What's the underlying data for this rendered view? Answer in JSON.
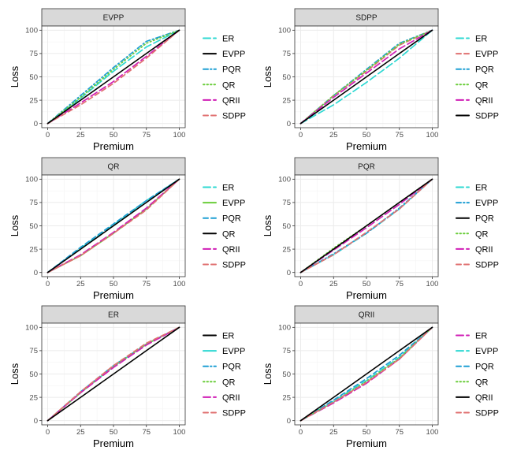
{
  "figure_title": "",
  "colors": {
    "ER": "#2ed8d2",
    "EVPP": "#e07070",
    "PQR": "#1f9fd4",
    "QR": "#6acd3a",
    "QRII": "#d01fb6",
    "SDPP": "#e07070",
    "reference": "#000000",
    "strip_bg": "#d9d9d9",
    "grid": "#ebebeb"
  },
  "chart_data": [
    {
      "type": "line",
      "title": "EVPP",
      "xlabel": "Premium",
      "ylabel": "Loss",
      "xlim": [
        0,
        100
      ],
      "ylim": [
        0,
        100
      ],
      "x_ticks": [
        0,
        25,
        50,
        75,
        100
      ],
      "y_ticks": [
        0,
        25,
        50,
        75,
        100
      ],
      "legend": [
        "ER",
        "EVPP",
        "PQR",
        "QR",
        "QRII",
        "SDPP"
      ],
      "reference_series": "EVPP",
      "series": [
        {
          "name": "ER",
          "color": "#2ed8d2",
          "dash": "9,4",
          "x": [
            0,
            25,
            50,
            75,
            100
          ],
          "y": [
            0,
            27,
            56,
            82,
            100
          ]
        },
        {
          "name": "EVPP",
          "color": "#000000",
          "dash": "",
          "x": [
            0,
            25,
            50,
            75,
            100
          ],
          "y": [
            0,
            25,
            50,
            75,
            100
          ]
        },
        {
          "name": "PQR",
          "color": "#1f9fd4",
          "dash": "6,3,1.5,3",
          "x": [
            0,
            25,
            50,
            75,
            100
          ],
          "y": [
            0,
            30,
            60,
            88,
            100
          ]
        },
        {
          "name": "QR",
          "color": "#6acd3a",
          "dash": "1.5,3",
          "x": [
            0,
            25,
            50,
            75,
            100
          ],
          "y": [
            0,
            28,
            58,
            86,
            100
          ]
        },
        {
          "name": "QRII",
          "color": "#d01fb6",
          "dash": "9,4",
          "x": [
            0,
            25,
            50,
            75,
            100
          ],
          "y": [
            0,
            22,
            45,
            72,
            100
          ]
        },
        {
          "name": "SDPP",
          "color": "#e07070",
          "dash": "6,4",
          "x": [
            0,
            25,
            50,
            75,
            100
          ],
          "y": [
            0,
            20,
            43,
            70,
            100
          ]
        }
      ]
    },
    {
      "type": "line",
      "title": "SDPP",
      "xlabel": "Premium",
      "ylabel": "Loss",
      "xlim": [
        0,
        100
      ],
      "ylim": [
        0,
        100
      ],
      "x_ticks": [
        0,
        25,
        50,
        75,
        100
      ],
      "y_ticks": [
        0,
        25,
        50,
        75,
        100
      ],
      "legend": [
        "ER",
        "EVPP",
        "PQR",
        "QR",
        "QRII",
        "SDPP"
      ],
      "reference_series": "SDPP",
      "series": [
        {
          "name": "ER",
          "color": "#2ed8d2",
          "dash": "9,4",
          "x": [
            0,
            25,
            50,
            75,
            100
          ],
          "y": [
            0,
            20,
            44,
            70,
            100
          ]
        },
        {
          "name": "EVPP",
          "color": "#e07070",
          "dash": "6,4",
          "x": [
            0,
            25,
            50,
            75,
            100
          ],
          "y": [
            0,
            30,
            56,
            84,
            100
          ]
        },
        {
          "name": "PQR",
          "color": "#1f9fd4",
          "dash": "6,3,1.5,3",
          "x": [
            0,
            25,
            50,
            75,
            100
          ],
          "y": [
            0,
            30,
            58,
            86,
            100
          ]
        },
        {
          "name": "QR",
          "color": "#6acd3a",
          "dash": "1.5,3",
          "x": [
            0,
            25,
            50,
            75,
            100
          ],
          "y": [
            0,
            30,
            57,
            85,
            100
          ]
        },
        {
          "name": "QRII",
          "color": "#d01fb6",
          "dash": "9,4",
          "x": [
            0,
            25,
            50,
            75,
            100
          ],
          "y": [
            0,
            28,
            54,
            80,
            100
          ]
        },
        {
          "name": "SDPP",
          "color": "#000000",
          "dash": "",
          "x": [
            0,
            25,
            50,
            75,
            100
          ],
          "y": [
            0,
            25,
            50,
            75,
            100
          ]
        }
      ]
    },
    {
      "type": "line",
      "title": "QR",
      "xlabel": "Premium",
      "ylabel": "Loss",
      "xlim": [
        0,
        100
      ],
      "ylim": [
        0,
        100
      ],
      "x_ticks": [
        0,
        25,
        50,
        75,
        100
      ],
      "y_ticks": [
        0,
        25,
        50,
        75,
        100
      ],
      "legend": [
        "ER",
        "EVPP",
        "PQR",
        "QR",
        "QRII",
        "SDPP"
      ],
      "reference_series": "QR",
      "series": [
        {
          "name": "ER",
          "color": "#2ed8d2",
          "dash": "9,4",
          "x": [
            0,
            25,
            50,
            75,
            100
          ],
          "y": [
            0,
            26,
            51,
            77,
            100
          ]
        },
        {
          "name": "EVPP",
          "color": "#6acd3a",
          "dash": "",
          "x": [
            0,
            25,
            50,
            75,
            100
          ],
          "y": [
            0,
            18,
            42,
            68,
            100
          ]
        },
        {
          "name": "PQR",
          "color": "#1f9fd4",
          "dash": "6,4",
          "x": [
            0,
            25,
            50,
            75,
            100
          ],
          "y": [
            0,
            27,
            52,
            77,
            100
          ]
        },
        {
          "name": "QR",
          "color": "#000000",
          "dash": "",
          "x": [
            0,
            25,
            50,
            75,
            100
          ],
          "y": [
            0,
            25,
            50,
            75,
            100
          ]
        },
        {
          "name": "QRII",
          "color": "#d01fb6",
          "dash": "9,4",
          "x": [
            0,
            25,
            50,
            75,
            100
          ],
          "y": [
            0,
            19,
            43,
            69,
            100
          ]
        },
        {
          "name": "SDPP",
          "color": "#e07070",
          "dash": "6,4",
          "x": [
            0,
            25,
            50,
            75,
            100
          ],
          "y": [
            0,
            18,
            42,
            67,
            100
          ]
        }
      ]
    },
    {
      "type": "line",
      "title": "PQR",
      "xlabel": "Premium",
      "ylabel": "Loss",
      "xlim": [
        0,
        100
      ],
      "ylim": [
        0,
        100
      ],
      "x_ticks": [
        0,
        25,
        50,
        75,
        100
      ],
      "y_ticks": [
        0,
        25,
        50,
        75,
        100
      ],
      "legend": [
        "ER",
        "EVPP",
        "PQR",
        "QR",
        "QRII",
        "SDPP"
      ],
      "reference_series": "PQR",
      "series": [
        {
          "name": "ER",
          "color": "#2ed8d2",
          "dash": "9,4",
          "x": [
            0,
            25,
            50,
            75,
            100
          ],
          "y": [
            0,
            19,
            42,
            68,
            100
          ]
        },
        {
          "name": "EVPP",
          "color": "#1f9fd4",
          "dash": "6,3,1.5,3",
          "x": [
            0,
            25,
            50,
            75,
            100
          ],
          "y": [
            0,
            20,
            42,
            69,
            100
          ]
        },
        {
          "name": "PQR",
          "color": "#000000",
          "dash": "",
          "x": [
            0,
            25,
            50,
            75,
            100
          ],
          "y": [
            0,
            25,
            50,
            75,
            100
          ]
        },
        {
          "name": "QR",
          "color": "#6acd3a",
          "dash": "1.5,3",
          "x": [
            0,
            25,
            50,
            75,
            100
          ],
          "y": [
            0,
            26,
            50,
            75,
            100
          ]
        },
        {
          "name": "QRII",
          "color": "#d01fb6",
          "dash": "9,4",
          "x": [
            0,
            25,
            50,
            75,
            100
          ],
          "y": [
            0,
            24,
            48,
            73,
            100
          ]
        },
        {
          "name": "SDPP",
          "color": "#e07070",
          "dash": "6,4",
          "x": [
            0,
            25,
            50,
            75,
            100
          ],
          "y": [
            0,
            19,
            43,
            68,
            100
          ]
        }
      ]
    },
    {
      "type": "line",
      "title": "ER",
      "xlabel": "Premium",
      "ylabel": "Loss",
      "xlim": [
        0,
        100
      ],
      "ylim": [
        0,
        100
      ],
      "x_ticks": [
        0,
        25,
        50,
        75,
        100
      ],
      "y_ticks": [
        0,
        25,
        50,
        75,
        100
      ],
      "legend": [
        "ER",
        "EVPP",
        "PQR",
        "QR",
        "QRII",
        "SDPP"
      ],
      "reference_series": "ER",
      "series": [
        {
          "name": "ER",
          "color": "#000000",
          "dash": "",
          "x": [
            0,
            25,
            50,
            75,
            100
          ],
          "y": [
            0,
            25,
            50,
            75,
            100
          ]
        },
        {
          "name": "EVPP",
          "color": "#2ed8d2",
          "dash": "",
          "x": [
            0,
            25,
            50,
            75,
            100
          ],
          "y": [
            0,
            30,
            58,
            82,
            100
          ]
        },
        {
          "name": "PQR",
          "color": "#1f9fd4",
          "dash": "6,3,1.5,3",
          "x": [
            0,
            25,
            50,
            75,
            100
          ],
          "y": [
            0,
            31,
            59,
            82,
            100
          ]
        },
        {
          "name": "QR",
          "color": "#6acd3a",
          "dash": "1.5,3",
          "x": [
            0,
            25,
            50,
            75,
            100
          ],
          "y": [
            0,
            30,
            58,
            82,
            100
          ]
        },
        {
          "name": "QRII",
          "color": "#d01fb6",
          "dash": "9,4",
          "x": [
            0,
            25,
            50,
            75,
            100
          ],
          "y": [
            0,
            30,
            57,
            81,
            100
          ]
        },
        {
          "name": "SDPP",
          "color": "#e07070",
          "dash": "6,4",
          "x": [
            0,
            25,
            50,
            75,
            100
          ],
          "y": [
            0,
            31,
            59,
            83,
            100
          ]
        }
      ]
    },
    {
      "type": "line",
      "title": "QRII",
      "xlabel": "Premium",
      "ylabel": "Loss",
      "xlim": [
        0,
        100
      ],
      "ylim": [
        0,
        100
      ],
      "x_ticks": [
        0,
        25,
        50,
        75,
        100
      ],
      "y_ticks": [
        0,
        25,
        50,
        75,
        100
      ],
      "legend": [
        "ER",
        "EVPP",
        "PQR",
        "QR",
        "QRII",
        "SDPP"
      ],
      "reference_series": "QRII",
      "series": [
        {
          "name": "ER",
          "color": "#d01fb6",
          "dash": "9,4",
          "x": [
            0,
            25,
            50,
            75,
            100
          ],
          "y": [
            0,
            19,
            40,
            66,
            100
          ]
        },
        {
          "name": "EVPP",
          "color": "#2ed8d2",
          "dash": "9,4",
          "x": [
            0,
            25,
            50,
            75,
            100
          ],
          "y": [
            0,
            21,
            43,
            68,
            100
          ]
        },
        {
          "name": "PQR",
          "color": "#1f9fd4",
          "dash": "6,4",
          "x": [
            0,
            25,
            50,
            75,
            100
          ],
          "y": [
            0,
            22,
            45,
            70,
            100
          ]
        },
        {
          "name": "QR",
          "color": "#6acd3a",
          "dash": "1.5,3",
          "x": [
            0,
            25,
            50,
            75,
            100
          ],
          "y": [
            0,
            20,
            42,
            67,
            100
          ]
        },
        {
          "name": "QRII",
          "color": "#000000",
          "dash": "",
          "x": [
            0,
            25,
            50,
            75,
            100
          ],
          "y": [
            0,
            25,
            50,
            75,
            100
          ]
        },
        {
          "name": "SDPP",
          "color": "#e07070",
          "dash": "6,4",
          "x": [
            0,
            25,
            50,
            75,
            100
          ],
          "y": [
            0,
            20,
            41,
            66,
            100
          ]
        }
      ]
    }
  ]
}
